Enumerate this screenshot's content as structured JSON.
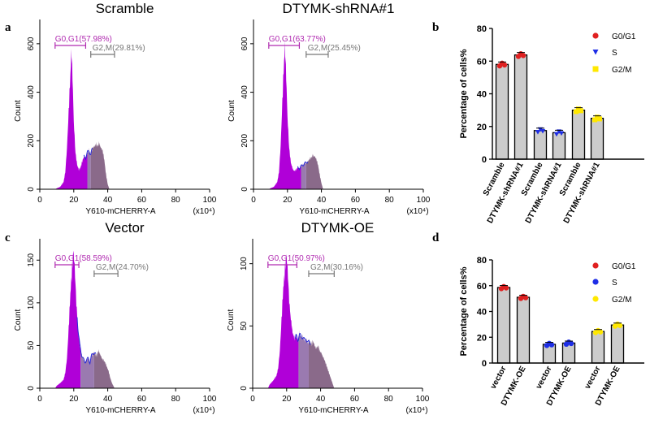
{
  "panels": {
    "a": "a",
    "b": "b",
    "c": "c",
    "d": "d"
  },
  "colors": {
    "g1_fill": "#b000d8",
    "s_fill": "#9a7ab0",
    "g2_fill": "#8a6a8a",
    "s_line": "#2a2ad8",
    "bar": "#cccccc",
    "g0g1_red": "#e02020",
    "s_blue": "#1e2ee6",
    "g2m_yellow": "#ffe800",
    "gate_g1": "#b02ab0",
    "gate_g2": "#777777"
  },
  "chart_data": [
    {
      "id": "hist_scramble",
      "type": "histogram",
      "title": "Scramble",
      "xlabel": "Y610-mCHERRY-A",
      "xunit": "(x10⁴)",
      "ylabel": "Count",
      "xlim": [
        0,
        100
      ],
      "ylim": [
        0,
        700
      ],
      "xticks": [
        "0",
        "20",
        "40",
        "60",
        "80",
        "100"
      ],
      "yticks": [
        "0",
        "200",
        "400",
        "600"
      ],
      "gates": [
        {
          "label": "G0,G1(57.98%)",
          "range": [
            9,
            27
          ]
        },
        {
          "label": "G2,M(29.81%)",
          "range": [
            30,
            44
          ]
        }
      ],
      "profile": [
        [
          9,
          0
        ],
        [
          10,
          4
        ],
        [
          12,
          10
        ],
        [
          14,
          30
        ],
        [
          15,
          70
        ],
        [
          16,
          170
        ],
        [
          17,
          320
        ],
        [
          18,
          470
        ],
        [
          18.6,
          575
        ],
        [
          19.2,
          480
        ],
        [
          20,
          280
        ],
        [
          21,
          150
        ],
        [
          22,
          100
        ],
        [
          23,
          80
        ],
        [
          24,
          90
        ],
        [
          25,
          115
        ],
        [
          26,
          135
        ],
        [
          27,
          130
        ],
        [
          28,
          150
        ],
        [
          29,
          160
        ],
        [
          30,
          140
        ],
        [
          31,
          170
        ],
        [
          32,
          175
        ],
        [
          33,
          185
        ],
        [
          34,
          178
        ],
        [
          35,
          190
        ],
        [
          36,
          170
        ],
        [
          37,
          160
        ],
        [
          38,
          120
        ],
        [
          39,
          60
        ],
        [
          40,
          20
        ],
        [
          41,
          0
        ]
      ]
    },
    {
      "id": "hist_shrna",
      "type": "histogram",
      "title": "DTYMK-shRNA#1",
      "xlabel": "Y610-mCHERRY-A",
      "xunit": "(x10⁴)",
      "ylabel": "Count",
      "xlim": [
        0,
        100
      ],
      "ylim": [
        0,
        700
      ],
      "xticks": [
        "0",
        "20",
        "40",
        "60",
        "80",
        "100"
      ],
      "yticks": [
        "0",
        "200",
        "400",
        "600"
      ],
      "gates": [
        {
          "label": "G0,G1(63.77%)",
          "range": [
            9,
            27
          ]
        },
        {
          "label": "G2,M(25.45%)",
          "range": [
            31,
            44
          ]
        }
      ],
      "profile": [
        [
          9,
          0
        ],
        [
          10,
          4
        ],
        [
          12,
          10
        ],
        [
          14,
          30
        ],
        [
          15,
          70
        ],
        [
          16,
          180
        ],
        [
          17,
          360
        ],
        [
          17.8,
          500
        ],
        [
          18.5,
          590
        ],
        [
          19.2,
          480
        ],
        [
          20,
          300
        ],
        [
          21,
          170
        ],
        [
          22,
          110
        ],
        [
          23,
          85
        ],
        [
          24,
          75
        ],
        [
          25,
          80
        ],
        [
          26,
          90
        ],
        [
          27,
          85
        ],
        [
          28,
          95
        ],
        [
          29,
          100
        ],
        [
          30,
          105
        ],
        [
          31,
          110
        ],
        [
          32,
          115
        ],
        [
          33,
          125
        ],
        [
          34,
          130
        ],
        [
          35,
          140
        ],
        [
          36,
          135
        ],
        [
          37,
          125
        ],
        [
          38,
          100
        ],
        [
          39,
          60
        ],
        [
          40,
          25
        ],
        [
          41,
          0
        ]
      ]
    },
    {
      "id": "hist_vector",
      "type": "histogram",
      "title": "Vector",
      "xlabel": "Y610-mCHERRY-A",
      "xunit": "(x10⁴)",
      "ylabel": "Count",
      "xlim": [
        0,
        100
      ],
      "ylim": [
        0,
        175
      ],
      "xticks": [
        "0",
        "20",
        "40",
        "60",
        "80",
        "100"
      ],
      "yticks": [
        "0",
        "50",
        "100",
        "150"
      ],
      "gates": [
        {
          "label": "G0,G1(58.59%)",
          "range": [
            9,
            23
          ]
        },
        {
          "label": "G2,M(24.70%)",
          "range": [
            32,
            46
          ]
        }
      ],
      "profile": [
        [
          9,
          0
        ],
        [
          10,
          3
        ],
        [
          12,
          6
        ],
        [
          14,
          10
        ],
        [
          15,
          18
        ],
        [
          16,
          35
        ],
        [
          17,
          70
        ],
        [
          18,
          110
        ],
        [
          19,
          140
        ],
        [
          19.8,
          162
        ],
        [
          20.6,
          140
        ],
        [
          21.5,
          100
        ],
        [
          22.5,
          70
        ],
        [
          23.5,
          50
        ],
        [
          24.5,
          40
        ],
        [
          25.5,
          35
        ],
        [
          26.5,
          30
        ],
        [
          27.5,
          33
        ],
        [
          28.5,
          35
        ],
        [
          29.5,
          30
        ],
        [
          30.5,
          38
        ],
        [
          31.5,
          42
        ],
        [
          32.5,
          40
        ],
        [
          33.5,
          38
        ],
        [
          34.5,
          44
        ],
        [
          35.5,
          40
        ],
        [
          36.5,
          35
        ],
        [
          37.5,
          33
        ],
        [
          38.5,
          30
        ],
        [
          39.5,
          25
        ],
        [
          40.5,
          20
        ],
        [
          41.5,
          12
        ],
        [
          42.5,
          6
        ],
        [
          44,
          0
        ]
      ]
    },
    {
      "id": "hist_oe",
      "type": "histogram",
      "title": "DTYMK-OE",
      "xlabel": "Y610-mCHERRY-A",
      "xunit": "(x10⁴)",
      "ylabel": "Count",
      "xlim": [
        0,
        100
      ],
      "ylim": [
        0,
        120
      ],
      "xticks": [
        "0",
        "20",
        "40",
        "60",
        "80",
        "100"
      ],
      "yticks": [
        "0",
        "50",
        "100"
      ],
      "gates": [
        {
          "label": "G0,G1(50.97%)",
          "range": [
            9,
            26
          ]
        },
        {
          "label": "G2,M(30.16%)",
          "range": [
            33,
            48
          ]
        }
      ],
      "profile": [
        [
          9,
          0
        ],
        [
          10,
          3
        ],
        [
          12,
          6
        ],
        [
          14,
          10
        ],
        [
          15,
          16
        ],
        [
          16,
          30
        ],
        [
          17,
          55
        ],
        [
          18,
          80
        ],
        [
          19,
          95
        ],
        [
          19.8,
          108
        ],
        [
          20.6,
          95
        ],
        [
          21.5,
          70
        ],
        [
          22.5,
          55
        ],
        [
          23.5,
          45
        ],
        [
          24.5,
          40
        ],
        [
          25.5,
          42
        ],
        [
          26.5,
          38
        ],
        [
          27.5,
          44
        ],
        [
          28.5,
          40
        ],
        [
          29.5,
          42
        ],
        [
          30.5,
          38
        ],
        [
          31.5,
          40
        ],
        [
          32.5,
          36
        ],
        [
          33.5,
          38
        ],
        [
          34.5,
          35
        ],
        [
          35.5,
          38
        ],
        [
          36.5,
          34
        ],
        [
          37.5,
          32
        ],
        [
          38.5,
          34
        ],
        [
          39.5,
          30
        ],
        [
          40.5,
          28
        ],
        [
          41.5,
          25
        ],
        [
          42.5,
          22
        ],
        [
          43.5,
          18
        ],
        [
          44.5,
          14
        ],
        [
          45.5,
          10
        ],
        [
          46.5,
          6
        ],
        [
          48,
          0
        ]
      ]
    },
    {
      "id": "bar_b",
      "type": "bar",
      "ylabel": "Percentage of cells%",
      "ylim": [
        0,
        80
      ],
      "yticks": [
        "0",
        "20",
        "40",
        "60",
        "80"
      ],
      "categories": [
        "Scramble",
        "DTYMK-shRNA#1",
        "Scramble",
        "DTYMK-shRNA#1",
        "Scramble",
        "DTYMK-shRNA#1"
      ],
      "values": [
        57.98,
        63.77,
        17.5,
        16.2,
        30.0,
        25.0
      ],
      "dotseries": [
        "red",
        "red",
        "blue",
        "blue",
        "yellow",
        "yellow"
      ],
      "legend": [
        {
          "label": "G0/G1",
          "color": "red",
          "marker": "circle"
        },
        {
          "label": "S",
          "color": "blue",
          "marker": "triangle"
        },
        {
          "label": "G2/M",
          "color": "yellow",
          "marker": "square"
        }
      ]
    },
    {
      "id": "bar_d",
      "type": "bar",
      "ylabel": "Percentage of cells%",
      "ylim": [
        0,
        80
      ],
      "yticks": [
        "0",
        "20",
        "40",
        "60",
        "80"
      ],
      "categories": [
        "vector",
        "DTYMK-OE",
        "vector",
        "DTYMK-OE",
        "vector",
        "DTYMK-OE"
      ],
      "values": [
        58.6,
        51.0,
        14.5,
        15.5,
        24.5,
        29.5
      ],
      "dotseries": [
        "red",
        "red",
        "blue",
        "blue",
        "yellow",
        "yellow"
      ],
      "legend": [
        {
          "label": "G0/G1",
          "color": "red",
          "marker": "circle"
        },
        {
          "label": "S",
          "color": "blue",
          "marker": "circle"
        },
        {
          "label": "G2/M",
          "color": "yellow",
          "marker": "circle"
        }
      ]
    }
  ]
}
